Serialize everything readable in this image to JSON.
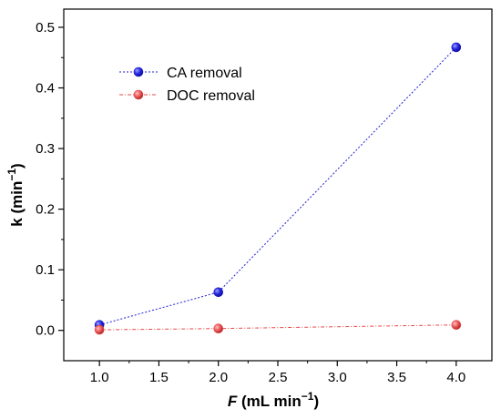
{
  "chart_data": {
    "type": "line",
    "x": [
      1.0,
      2.0,
      4.0
    ],
    "xlim": [
      0.7,
      4.3
    ],
    "ylim": [
      -0.05,
      0.53
    ],
    "x_ticks": [
      "1.0",
      "1.5",
      "2.0",
      "2.5",
      "3.0",
      "3.5",
      "4.0"
    ],
    "x_tick_values": [
      1.0,
      1.5,
      2.0,
      2.5,
      3.0,
      3.5,
      4.0
    ],
    "y_ticks": [
      "0.0",
      "0.1",
      "0.2",
      "0.3",
      "0.4",
      "0.5"
    ],
    "y_tick_values": [
      0.0,
      0.1,
      0.2,
      0.3,
      0.4,
      0.5
    ],
    "xlabel": {
      "italic": "F",
      "rest": " (mL min",
      "sup": "−1",
      "close": ")"
    },
    "ylabel": {
      "main": "k (min",
      "sup": "−1",
      "close": ")"
    },
    "grid": false,
    "legend_position": "top-left",
    "series": [
      {
        "name": "CA removal",
        "values": [
          0.009,
          0.063,
          0.467
        ],
        "color": "#1f1fd6",
        "marker_color": "#1a1acc"
      },
      {
        "name": "DOC removal",
        "values": [
          0.001,
          0.003,
          0.009
        ],
        "color": "#e84a4a",
        "marker_color": "#e04545"
      }
    ]
  }
}
